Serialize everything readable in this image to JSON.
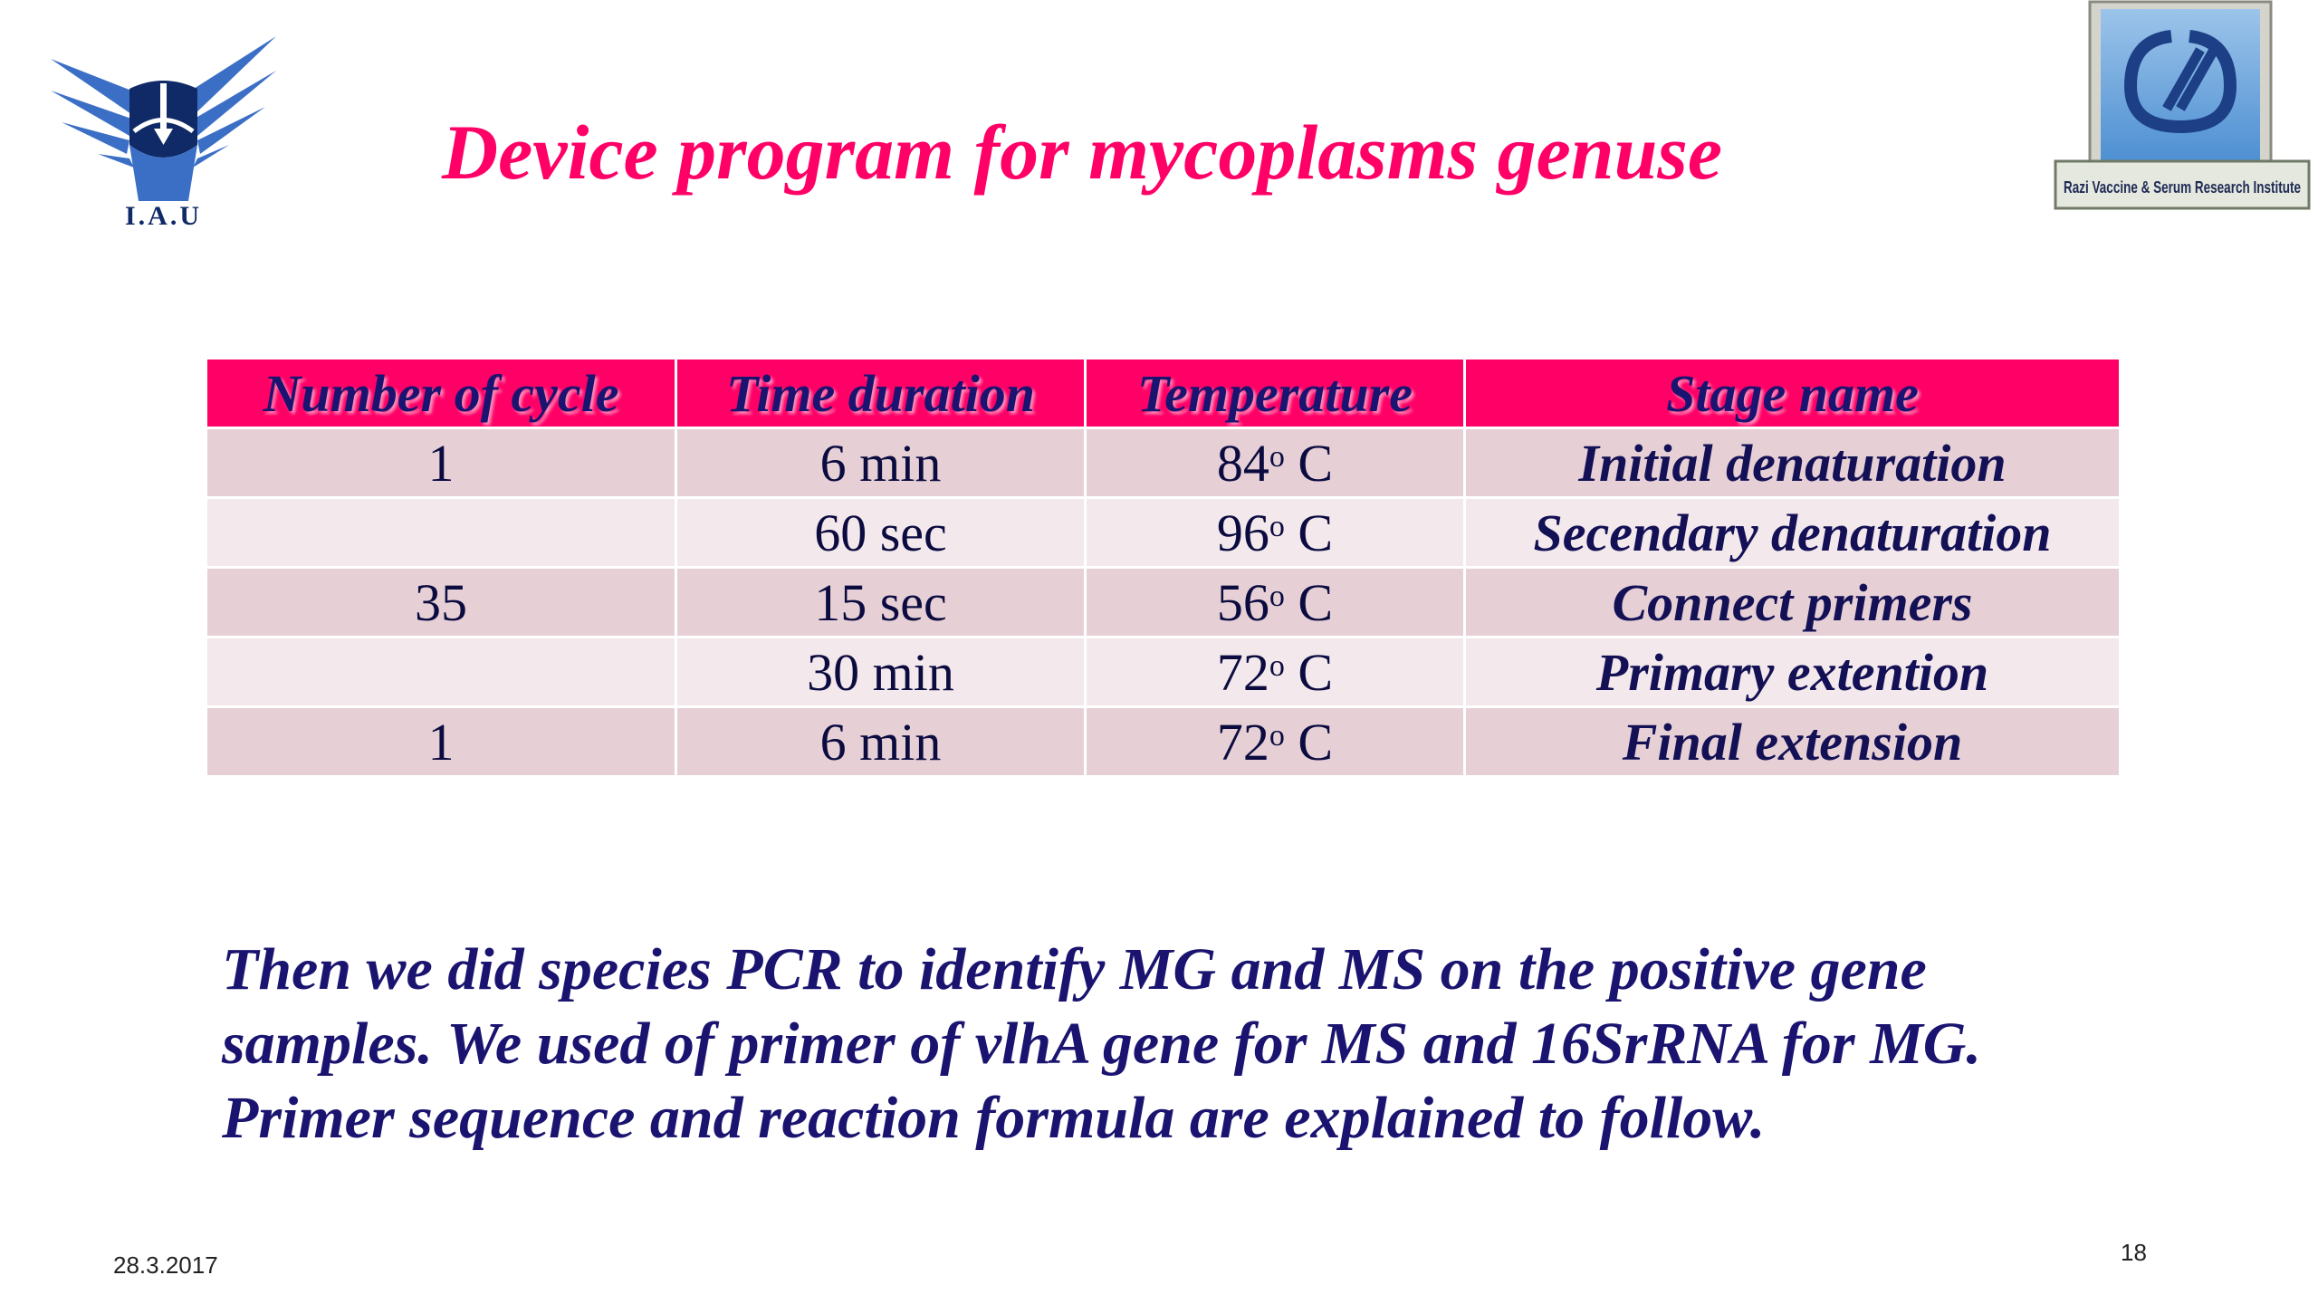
{
  "title": "Device program for mycoplasms genuse",
  "logos": {
    "left": {
      "text": "I.A.U",
      "icon": "iau-logo-icon",
      "color": "#3b6fc6"
    },
    "right": {
      "text": "Razi Vaccine & Serum Research Institute",
      "icon": "razi-institute-logo-icon"
    }
  },
  "table": {
    "headers": [
      "Number of cycle",
      "Time duration",
      "Temperature",
      "Stage name"
    ],
    "rows": [
      {
        "cycles": "1",
        "time": "6 min",
        "temp_value": "84",
        "temp_deg": "o",
        "temp_unit": "C",
        "stage": "Initial denaturation"
      },
      {
        "cycles": "",
        "time": "60 sec",
        "temp_value": "96",
        "temp_deg": "o",
        "temp_unit": "C",
        "stage": "Secendary denaturation"
      },
      {
        "cycles": "35",
        "time": "15 sec",
        "temp_value": "56",
        "temp_deg": "o",
        "temp_unit": "C",
        "stage": "Connect primers"
      },
      {
        "cycles": "",
        "time": "30 min",
        "temp_value": "72",
        "temp_deg": "o",
        "temp_unit": "C",
        "stage": "Primary extention"
      },
      {
        "cycles": "1",
        "time": "6 min",
        "temp_value": "72",
        "temp_deg": "o",
        "temp_unit": "C",
        "stage": "Final extension"
      }
    ]
  },
  "paragraph": {
    "lines": [
      "Then we did species PCR to identify MG and MS on the positive gene",
      "samples. We used of primer of vlhA gene for MS and 16SrRNA for MG.",
      "Primer sequence  and reaction formula are explained to follow."
    ]
  },
  "footer": {
    "date": "28.3.2017",
    "page_number": "18"
  },
  "colors": {
    "title": "#ff0066",
    "header_bg": "#ff0066",
    "row_odd": "#e6d0d6",
    "row_even": "#f3e8eb",
    "text_navy": "#1a1470"
  }
}
